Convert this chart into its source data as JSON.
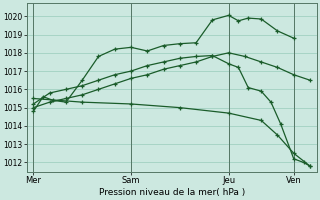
{
  "xlabel": "Pression niveau de la mer( hPa )",
  "bg_color": "#cce8e0",
  "grid_color": "#99ccbb",
  "line_color": "#1a5c2a",
  "vline_color": "#557766",
  "ylim": [
    1011.5,
    1020.7
  ],
  "yticks": [
    1012,
    1013,
    1014,
    1015,
    1016,
    1017,
    1018,
    1019,
    1020
  ],
  "xtick_labels": [
    "Mer",
    "Sam",
    "Jeu",
    "Ven"
  ],
  "xtick_positions": [
    0,
    3,
    6,
    8
  ],
  "xlim": [
    -0.2,
    8.7
  ],
  "line1_x": [
    0,
    0.3,
    0.6,
    1.0,
    1.5,
    2.0,
    2.5,
    3.0,
    3.5,
    4.0,
    4.5,
    5.0,
    5.5,
    6.0,
    6.3,
    6.6,
    7.0,
    7.5,
    8.0
  ],
  "line1_y": [
    1014.8,
    1015.6,
    1015.4,
    1015.3,
    1016.5,
    1017.8,
    1018.2,
    1018.3,
    1018.1,
    1018.4,
    1018.5,
    1018.55,
    1019.8,
    1020.05,
    1019.75,
    1019.9,
    1019.85,
    1019.2,
    1018.8
  ],
  "line2_x": [
    0,
    0.5,
    1.0,
    1.5,
    2.0,
    2.5,
    3.0,
    3.5,
    4.0,
    4.5,
    5.0,
    5.5,
    6.0,
    6.5,
    7.0,
    7.5,
    8.0,
    8.5
  ],
  "line2_y": [
    1015.0,
    1015.3,
    1015.5,
    1015.7,
    1016.0,
    1016.3,
    1016.6,
    1016.8,
    1017.1,
    1017.3,
    1017.5,
    1017.8,
    1018.0,
    1017.8,
    1017.5,
    1017.2,
    1016.8,
    1016.5
  ],
  "line3_x": [
    0,
    0.5,
    1.0,
    1.5,
    2.0,
    2.5,
    3.0,
    3.5,
    4.0,
    4.5,
    5.0,
    5.5,
    6.0,
    6.3,
    6.6,
    7.0,
    7.3,
    7.6,
    8.0,
    8.3,
    8.5
  ],
  "line3_y": [
    1015.2,
    1015.8,
    1016.0,
    1016.2,
    1016.5,
    1016.8,
    1017.0,
    1017.3,
    1017.5,
    1017.7,
    1017.8,
    1017.85,
    1017.4,
    1017.2,
    1016.1,
    1015.9,
    1015.3,
    1014.1,
    1012.2,
    1012.0,
    1011.8
  ],
  "line4_x": [
    0,
    1.5,
    3.0,
    4.5,
    6.0,
    7.0,
    7.5,
    8.0,
    8.5
  ],
  "line4_y": [
    1015.5,
    1015.3,
    1015.2,
    1015.0,
    1014.7,
    1014.3,
    1013.5,
    1012.5,
    1011.8
  ]
}
